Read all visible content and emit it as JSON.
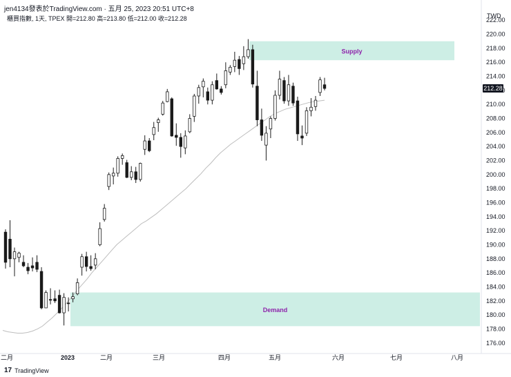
{
  "header": {
    "publish_line": "jen4134發表於TradingView.com · 五月 25, 2023 20:51 UTC+8",
    "symbol_line": "櫃買指數, 1天, TPEX  開=212.80  高=213.80  低=212.00  收=212.28"
  },
  "footer": {
    "logo_mark": "17",
    "brand": "TradingView"
  },
  "chart_data": {
    "type": "candlestick",
    "currency": "TWD",
    "last_price_label": "212.28",
    "y_ticks": [
      "222.00",
      "220.00",
      "218.00",
      "216.00",
      "214.00",
      "212.00",
      "210.00",
      "208.00",
      "206.00",
      "204.00",
      "202.00",
      "200.00",
      "198.00",
      "196.00",
      "194.00",
      "192.00",
      "190.00",
      "188.00",
      "186.00",
      "184.00",
      "182.00",
      "180.00",
      "178.00",
      "176.00"
    ],
    "ylim": [
      174.5,
      223.5
    ],
    "x_ticks": [
      "二月",
      "2023",
      "二月",
      "三月",
      "四月",
      "五月",
      "六月",
      "七月",
      "八月"
    ],
    "zones": [
      {
        "label": "Supply",
        "y_low": 216.3,
        "y_high": 219.0
      },
      {
        "label": "Demand",
        "y_low": 178.4,
        "y_high": 183.2
      }
    ],
    "colors": {
      "zone": "#cdeee5",
      "zone_label": "#8e24aa",
      "up": "#ffffff",
      "down": "#1a1a1a",
      "ma": "#bdbdbd"
    },
    "candles": [
      [
        191.8,
        192.2,
        186.6,
        187.5
      ],
      [
        190.8,
        193.5,
        186.8,
        188.0
      ],
      [
        188.0,
        189.6,
        185.5,
        189.0
      ],
      [
        188.2,
        189.0,
        187.5,
        188.8
      ],
      [
        187.5,
        188.5,
        186.8,
        187.0
      ],
      [
        186.8,
        187.4,
        185.8,
        186.3
      ],
      [
        187.0,
        188.2,
        186.2,
        186.7
      ],
      [
        187.5,
        188.5,
        186.1,
        186.5
      ],
      [
        186.2,
        186.8,
        180.8,
        181.0
      ],
      [
        181.0,
        183.5,
        181.0,
        183.2
      ],
      [
        182.2,
        183.8,
        181.5,
        182.1
      ],
      [
        182.3,
        183.5,
        181.7,
        182.0
      ],
      [
        182.8,
        183.6,
        180.2,
        180.3
      ],
      [
        180.3,
        183.1,
        178.5,
        182.5
      ],
      [
        181.7,
        182.5,
        180.5,
        181.6
      ],
      [
        182.3,
        183.2,
        181.8,
        182.6
      ],
      [
        183.0,
        185.2,
        182.8,
        184.6
      ],
      [
        186.8,
        188.7,
        185.6,
        188.3
      ],
      [
        188.3,
        189.0,
        186.2,
        186.9
      ],
      [
        186.9,
        188.5,
        186.3,
        186.6
      ],
      [
        187.1,
        188.8,
        186.5,
        188.0
      ],
      [
        190.0,
        193.2,
        189.8,
        192.3
      ],
      [
        193.6,
        195.8,
        193.3,
        195.2
      ],
      [
        198.3,
        200.3,
        197.8,
        200.0
      ],
      [
        199.8,
        201.0,
        198.6,
        200.2
      ],
      [
        200.2,
        202.6,
        199.7,
        202.3
      ],
      [
        202.3,
        203.0,
        201.4,
        202.7
      ],
      [
        201.7,
        202.1,
        199.5,
        199.6
      ],
      [
        199.6,
        201.2,
        199.2,
        200.4
      ],
      [
        200.4,
        201.1,
        198.8,
        199.3
      ],
      [
        199.3,
        201.7,
        199.0,
        201.6
      ],
      [
        203.6,
        205.6,
        202.8,
        204.8
      ],
      [
        204.8,
        205.2,
        203.2,
        203.4
      ],
      [
        205.7,
        207.5,
        204.9,
        206.7
      ],
      [
        207.4,
        208.1,
        206.1,
        207.8
      ],
      [
        208.6,
        210.5,
        208.4,
        210.2
      ],
      [
        210.4,
        212.2,
        210.3,
        211.8
      ],
      [
        210.8,
        211.0,
        205.4,
        205.5
      ],
      [
        205.6,
        207.3,
        204.1,
        205.3
      ],
      [
        205.3,
        205.9,
        202.4,
        204.0
      ],
      [
        203.8,
        206.3,
        202.9,
        205.5
      ],
      [
        206.1,
        208.6,
        205.9,
        208.0
      ],
      [
        208.3,
        211.5,
        207.5,
        211.2
      ],
      [
        211.2,
        212.8,
        210.1,
        212.4
      ],
      [
        212.5,
        213.7,
        211.0,
        213.3
      ],
      [
        211.8,
        212.4,
        210.0,
        210.6
      ],
      [
        210.6,
        213.3,
        210.0,
        212.8
      ],
      [
        213.4,
        214.4,
        212.1,
        212.2
      ],
      [
        212.2,
        212.6,
        211.4,
        211.7
      ],
      [
        212.8,
        216.0,
        212.3,
        214.8
      ],
      [
        214.6,
        215.6,
        214.2,
        215.3
      ],
      [
        215.4,
        217.5,
        214.6,
        216.3
      ],
      [
        216.4,
        216.9,
        214.2,
        215.1
      ],
      [
        215.8,
        218.3,
        214.9,
        216.8
      ],
      [
        216.8,
        219.3,
        216.5,
        217.8
      ],
      [
        217.8,
        218.5,
        212.4,
        212.9
      ],
      [
        212.6,
        214.8,
        206.9,
        207.8
      ],
      [
        207.8,
        209.4,
        204.8,
        205.6
      ],
      [
        204.2,
        206.9,
        202.0,
        205.9
      ],
      [
        206.5,
        208.3,
        205.2,
        208.0
      ],
      [
        208.0,
        212.0,
        207.7,
        211.3
      ],
      [
        211.3,
        214.8,
        210.7,
        213.6
      ],
      [
        213.4,
        213.9,
        210.1,
        210.5
      ],
      [
        210.5,
        214.2,
        209.8,
        212.8
      ],
      [
        212.6,
        213.1,
        209.8,
        210.2
      ],
      [
        210.5,
        211.1,
        204.8,
        205.8
      ],
      [
        205.5,
        207.0,
        204.2,
        205.2
      ],
      [
        205.9,
        209.6,
        205.5,
        209.1
      ],
      [
        209.1,
        210.9,
        208.3,
        209.6
      ],
      [
        209.7,
        211.2,
        209.1,
        210.6
      ],
      [
        211.7,
        213.9,
        211.2,
        213.5
      ],
      [
        212.8,
        213.8,
        212.0,
        212.28
      ]
    ],
    "moving_average": [
      177.8,
      177.6,
      177.5,
      177.4,
      177.4,
      177.5,
      177.7,
      178.0,
      178.4,
      179.0,
      179.6,
      180.3,
      181.0,
      181.8,
      182.6,
      183.5,
      184.3,
      185.1,
      186.0,
      186.8,
      187.6,
      188.4,
      189.2,
      190.0,
      190.6,
      191.2,
      191.8,
      192.4,
      193.0,
      193.4,
      193.9,
      194.4,
      195.0,
      195.6,
      196.2,
      196.8,
      197.4,
      198.0,
      198.7,
      199.4,
      200.1,
      200.9,
      201.6,
      202.4,
      203.1,
      203.7,
      204.3,
      204.8,
      205.3,
      205.8,
      206.3,
      206.8,
      207.3,
      207.8,
      208.3,
      208.7,
      209.0,
      209.3,
      209.5,
      209.7,
      209.9,
      210.1,
      210.3,
      210.4,
      210.5,
      210.6
    ]
  }
}
